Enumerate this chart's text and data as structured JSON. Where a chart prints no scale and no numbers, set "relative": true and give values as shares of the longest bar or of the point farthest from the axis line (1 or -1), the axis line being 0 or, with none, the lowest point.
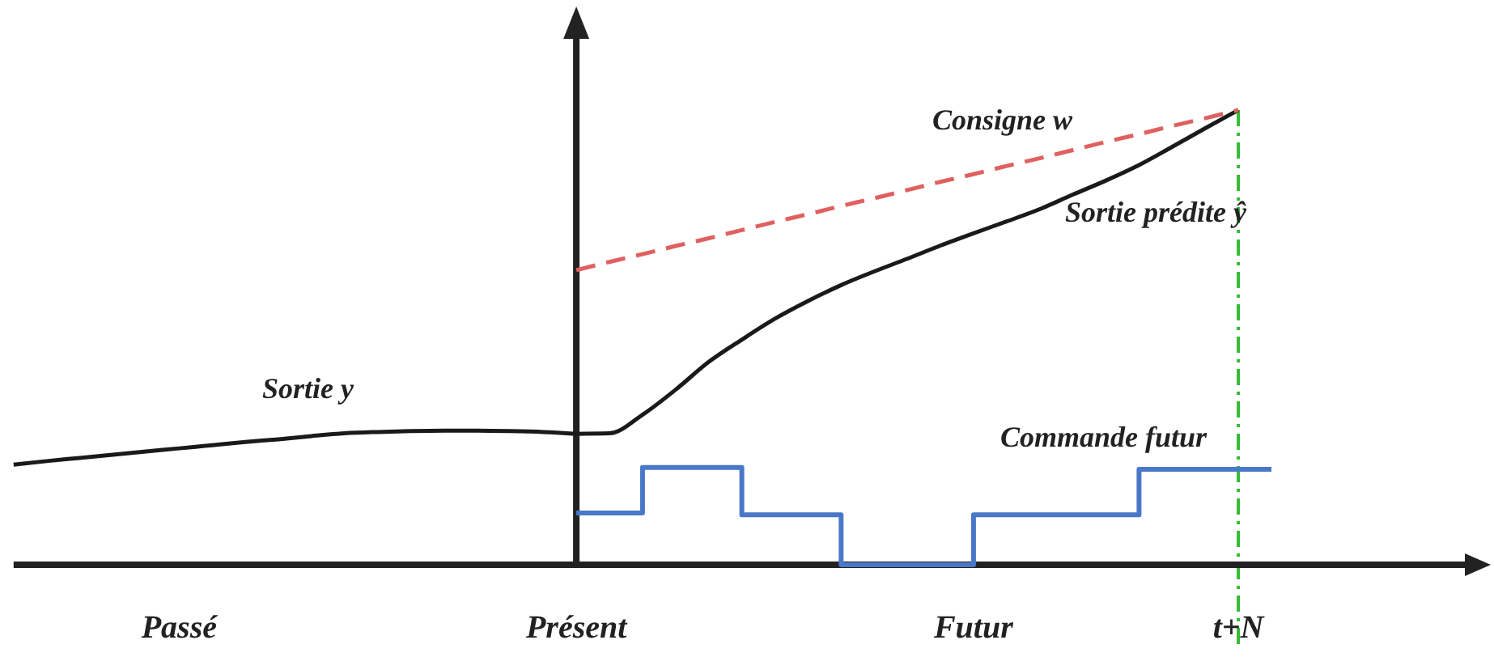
{
  "chart_data": {
    "type": "line",
    "relative": true,
    "categories": [
      null,
      null,
      null,
      null,
      null,
      "Passé",
      null,
      null,
      null,
      null,
      null,
      null,
      null,
      null,
      null,
      null,
      null,
      "Présent",
      null,
      null,
      null,
      null,
      null,
      null,
      null,
      null,
      null,
      null,
      null,
      "Futur",
      null,
      null,
      null,
      null,
      null,
      null,
      null,
      "t+N",
      null,
      null,
      null,
      null,
      null,
      null,
      null
    ],
    "series": [
      {
        "name": "Sortie  y",
        "color": "#1a1a1a",
        "values": [
          0.22,
          0.228,
          0.235,
          0.242,
          0.249,
          0.256,
          0.263,
          0.27,
          0.276,
          0.283,
          0.289,
          0.292,
          0.294,
          0.295,
          0.295,
          0.294,
          0.292,
          0.288,
          null,
          null,
          null,
          null,
          null,
          null,
          null,
          null,
          null,
          null,
          null,
          null,
          null,
          null,
          null,
          null,
          null,
          null,
          null,
          null,
          null,
          null,
          null,
          null,
          null,
          null,
          null
        ]
      },
      {
        "name": "Sortie prédite  ŷ",
        "color": "#1a1a1a",
        "values": [
          null,
          null,
          null,
          null,
          null,
          null,
          null,
          null,
          null,
          null,
          null,
          null,
          null,
          null,
          null,
          null,
          null,
          0.288,
          0.289,
          0.33,
          0.385,
          0.446,
          0.495,
          0.541,
          0.58,
          0.615,
          0.645,
          0.673,
          0.702,
          0.729,
          0.755,
          0.782,
          0.814,
          0.845,
          0.879,
          0.919,
          0.96,
          1,
          null,
          null,
          null,
          null,
          null,
          null,
          null
        ]
      },
      {
        "name": "Consigne  w",
        "color": "#e06060",
        "line_style": "dashed",
        "values": [
          null,
          null,
          null,
          null,
          null,
          null,
          null,
          null,
          null,
          null,
          null,
          null,
          null,
          null,
          null,
          null,
          null,
          0.648,
          0.666,
          0.683,
          0.701,
          0.718,
          0.736,
          0.754,
          0.771,
          0.789,
          0.806,
          0.824,
          0.842,
          0.859,
          0.877,
          0.894,
          0.912,
          0.93,
          0.947,
          0.965,
          0.982,
          1,
          null,
          null,
          null,
          null,
          null,
          null,
          null
        ]
      },
      {
        "name": "Commande futur",
        "type": "step",
        "color": "#4a78c8",
        "values": [
          null,
          null,
          null,
          null,
          null,
          null,
          null,
          null,
          null,
          null,
          null,
          null,
          null,
          null,
          null,
          null,
          null,
          0.114,
          0.114,
          0.214,
          0.214,
          0.214,
          0.11,
          0.11,
          0.11,
          0,
          0,
          0,
          0,
          0.11,
          0.11,
          0.11,
          0.11,
          0.11,
          0.21,
          0.21,
          0.21,
          0.21,
          0.21,
          null,
          null,
          null,
          null,
          null,
          null
        ]
      }
    ],
    "ref_lines": [
      {
        "axis": "x",
        "value": "t+N",
        "color": "#33bb33",
        "line_style": "dashed"
      }
    ]
  }
}
